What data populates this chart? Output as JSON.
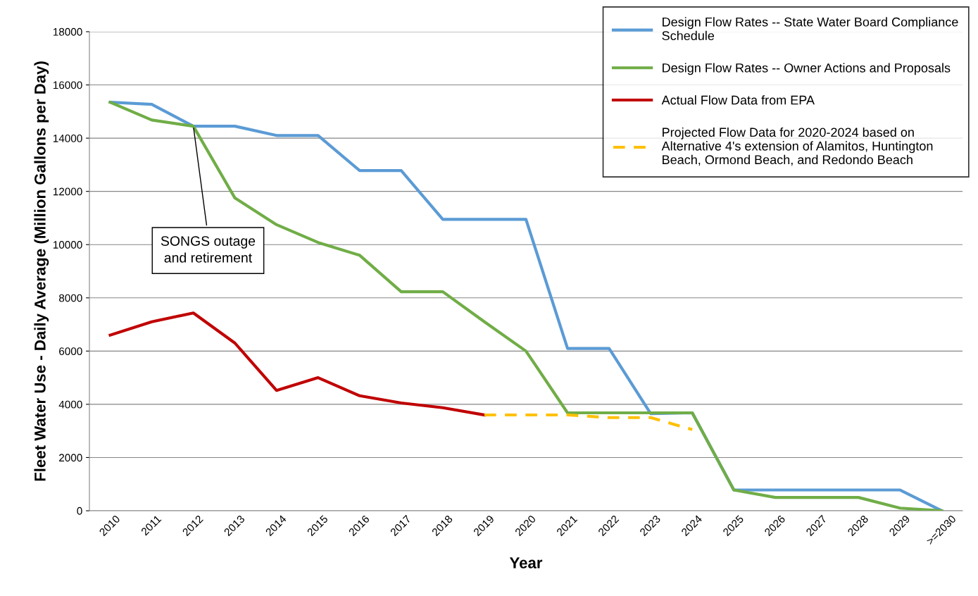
{
  "chart_data": {
    "type": "line",
    "xlabel": "Year",
    "ylabel": "Fleet Water Use - Daily Average (Million Gallons per Day)",
    "categories": [
      "2010",
      "2011",
      "2012",
      "2013",
      "2014",
      "2015",
      "2016",
      "2017",
      "2018",
      "2019",
      "2020",
      "2021",
      "2022",
      "2023",
      "2024",
      "2025",
      "2026",
      "2027",
      "2028",
      "2029",
      ">=2030"
    ],
    "series": [
      {
        "name": "Design Flow Rates -- State Water Board Compliance Schedule",
        "color": "#5b9bd5",
        "line_style": "solid",
        "values": [
          15350,
          15270,
          14450,
          14450,
          14100,
          14100,
          12780,
          12780,
          10950,
          10950,
          10950,
          6100,
          6100,
          3650,
          3680,
          780,
          780,
          780,
          780,
          780,
          0
        ]
      },
      {
        "name": "Design Flow Rates -- Owner Actions and Proposals",
        "color": "#70ad47",
        "line_style": "solid",
        "values": [
          15350,
          14680,
          14450,
          11750,
          10750,
          10080,
          9600,
          8230,
          8230,
          7100,
          6000,
          3680,
          3680,
          3680,
          3680,
          780,
          500,
          500,
          500,
          100,
          0
        ]
      },
      {
        "name": "Actual Flow Data from EPA",
        "color": "#c00000",
        "line_style": "solid",
        "values": [
          6600,
          7100,
          7430,
          6300,
          4520,
          5000,
          4320,
          4050,
          3870,
          3600,
          null,
          null,
          null,
          null,
          null,
          null,
          null,
          null,
          null,
          null,
          null
        ]
      },
      {
        "name": "Projected Flow Data for 2020-2024 based on Alternative 4's extension of Alamitos, Huntington Beach, Ormond Beach, and Redondo Beach",
        "color": "#ffc000",
        "line_style": "dashed",
        "values": [
          null,
          null,
          null,
          null,
          null,
          null,
          null,
          null,
          null,
          3600,
          3600,
          3600,
          3500,
          3500,
          3050,
          null,
          null,
          null,
          null,
          null,
          null
        ]
      }
    ],
    "ylim": [
      0,
      18000
    ],
    "yticks": [
      0,
      2000,
      4000,
      6000,
      8000,
      10000,
      12000,
      14000,
      16000,
      18000
    ],
    "grid": "y",
    "legend": "top right",
    "marker": "none",
    "annotations": [
      {
        "text": "SONGS outage and retirement",
        "x": "2012",
        "y": 14450
      }
    ]
  }
}
